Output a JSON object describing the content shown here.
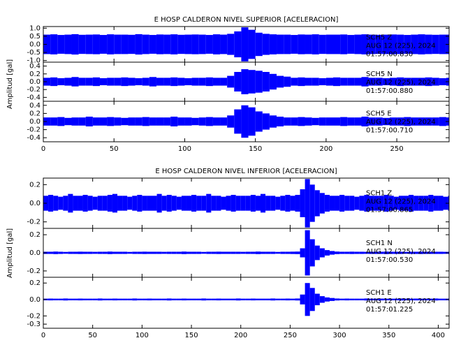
{
  "chart_data": [
    {
      "type": "waveform",
      "title": "E HOSP CALDERON NIVEL SUPERIOR [ACELERACION]",
      "y_label": "Amplitud [gal]",
      "color": "#0000ff",
      "xlim": [
        0,
        287
      ],
      "xticks": [
        0,
        50,
        100,
        150,
        200,
        250
      ],
      "x": [
        0,
        5,
        10,
        15,
        20,
        25,
        30,
        35,
        40,
        45,
        50,
        55,
        60,
        65,
        70,
        75,
        80,
        85,
        90,
        95,
        100,
        105,
        110,
        115,
        120,
        125,
        130,
        135,
        140,
        145,
        150,
        155,
        160,
        165,
        170,
        175,
        180,
        185,
        190,
        195,
        200,
        205,
        210,
        215,
        220,
        225,
        230,
        235,
        240,
        245,
        250,
        255,
        260,
        265,
        270,
        275,
        280,
        285
      ],
      "panels": [
        {
          "station": "SCH5   Z",
          "date": "AUG 12 (225), 2024",
          "time": "01:57:00.830",
          "ylim": [
            -1.1,
            1.1
          ],
          "yticks": [
            {
              "value": 1.0,
              "label": "1.0"
            },
            {
              "value": 0.5,
              "label": "0.5"
            },
            {
              "value": 0.0,
              "label": "0.0"
            },
            {
              "value": -0.5,
              "label": "-0.5"
            },
            {
              "value": -1.0,
              "label": "-1.0"
            }
          ],
          "values": [
            0.6,
            0.62,
            0.58,
            0.6,
            0.63,
            0.59,
            0.6,
            0.61,
            0.58,
            0.62,
            0.6,
            0.6,
            0.59,
            0.63,
            0.6,
            0.58,
            0.61,
            0.6,
            0.62,
            0.59,
            0.6,
            0.61,
            0.6,
            0.58,
            0.62,
            0.6,
            0.65,
            0.8,
            1.05,
            0.9,
            0.72,
            0.65,
            0.62,
            0.6,
            0.6,
            0.58,
            0.61,
            0.6,
            0.62,
            0.59,
            0.6,
            0.6,
            0.61,
            0.58,
            0.6,
            0.62,
            0.6,
            0.59,
            0.6,
            0.61,
            0.6,
            0.58,
            0.6,
            0.62,
            0.6,
            0.59,
            0.6,
            0.6
          ]
        },
        {
          "station": "SCH5   N",
          "date": "AUG 12 (225), 2024",
          "time": "01:57:00.880",
          "ylim": [
            -0.5,
            0.5
          ],
          "yticks": [
            {
              "value": 0.4,
              "label": "0.4"
            },
            {
              "value": 0.2,
              "label": "0.2"
            },
            {
              "value": 0.0,
              "label": "0.0"
            },
            {
              "value": -0.2,
              "label": "-0.2"
            },
            {
              "value": -0.4,
              "label": "-0.4"
            }
          ],
          "values": [
            0.1,
            0.11,
            0.09,
            0.1,
            0.12,
            0.1,
            0.1,
            0.11,
            0.09,
            0.1,
            0.1,
            0.11,
            0.1,
            0.09,
            0.1,
            0.12,
            0.1,
            0.1,
            0.11,
            0.1,
            0.09,
            0.1,
            0.1,
            0.11,
            0.1,
            0.1,
            0.15,
            0.25,
            0.32,
            0.3,
            0.28,
            0.25,
            0.2,
            0.15,
            0.13,
            0.1,
            0.11,
            0.1,
            0.1,
            0.09,
            0.1,
            0.11,
            0.1,
            0.1,
            0.1,
            0.12,
            0.1,
            0.1,
            0.09,
            0.1,
            0.11,
            0.1,
            0.1,
            0.1,
            0.11,
            0.1,
            0.09,
            0.1
          ]
        },
        {
          "station": "SCH5   E",
          "date": "AUG 12 (225), 2024",
          "time": "01:57:00.710",
          "ylim": [
            -0.5,
            0.5
          ],
          "yticks": [
            {
              "value": 0.4,
              "label": "0.4"
            },
            {
              "value": 0.2,
              "label": "0.2"
            },
            {
              "value": 0.0,
              "label": "0.0"
            },
            {
              "value": -0.2,
              "label": "-0.2"
            },
            {
              "value": -0.4,
              "label": "-0.4"
            }
          ],
          "values": [
            0.1,
            0.1,
            0.11,
            0.09,
            0.1,
            0.1,
            0.12,
            0.1,
            0.1,
            0.11,
            0.1,
            0.09,
            0.1,
            0.1,
            0.11,
            0.1,
            0.1,
            0.1,
            0.12,
            0.1,
            0.1,
            0.09,
            0.1,
            0.11,
            0.1,
            0.1,
            0.15,
            0.3,
            0.4,
            0.35,
            0.25,
            0.2,
            0.15,
            0.12,
            0.1,
            0.1,
            0.11,
            0.1,
            0.09,
            0.1,
            0.1,
            0.1,
            0.11,
            0.1,
            0.1,
            0.12,
            0.1,
            0.1,
            0.09,
            0.1,
            0.1,
            0.11,
            0.1,
            0.1,
            0.1,
            0.1,
            0.11,
            0.1
          ]
        }
      ]
    },
    {
      "type": "waveform",
      "title": "E HOSP CALDERON NIVEL INFERIOR [ACELERACION]",
      "y_label": "Amplitud [gal]",
      "color": "#0000ff",
      "xlim": [
        0,
        411
      ],
      "xticks": [
        0,
        50,
        100,
        150,
        200,
        250,
        300,
        350,
        400
      ],
      "x": [
        0,
        5,
        10,
        15,
        20,
        25,
        30,
        35,
        40,
        45,
        50,
        55,
        60,
        65,
        70,
        75,
        80,
        85,
        90,
        95,
        100,
        105,
        110,
        115,
        120,
        125,
        130,
        135,
        140,
        145,
        150,
        155,
        160,
        165,
        170,
        175,
        180,
        185,
        190,
        195,
        200,
        205,
        210,
        215,
        220,
        225,
        230,
        235,
        240,
        245,
        250,
        255,
        260,
        265,
        270,
        275,
        280,
        285,
        290,
        295,
        300,
        305,
        310,
        315,
        320,
        325,
        330,
        335,
        340,
        345,
        350,
        355,
        360,
        365,
        370,
        375,
        380,
        385,
        390,
        395,
        400,
        405,
        410
      ],
      "panels": [
        {
          "station": "SCH1   Z",
          "date": "AUG 12 (225), 2024",
          "time": "01:57:00.865",
          "ylim": [
            -0.27,
            0.27
          ],
          "yticks": [
            {
              "value": 0.2,
              "label": "0.2"
            },
            {
              "value": 0.0,
              "label": "0.0"
            },
            {
              "value": -0.2,
              "label": "-0.2"
            }
          ],
          "values": [
            0.08,
            0.09,
            0.08,
            0.07,
            0.08,
            0.1,
            0.08,
            0.08,
            0.09,
            0.08,
            0.07,
            0.08,
            0.08,
            0.09,
            0.1,
            0.08,
            0.08,
            0.07,
            0.08,
            0.09,
            0.08,
            0.08,
            0.08,
            0.1,
            0.08,
            0.09,
            0.08,
            0.07,
            0.08,
            0.08,
            0.09,
            0.08,
            0.08,
            0.1,
            0.08,
            0.08,
            0.07,
            0.08,
            0.09,
            0.08,
            0.08,
            0.08,
            0.09,
            0.08,
            0.1,
            0.08,
            0.08,
            0.07,
            0.08,
            0.09,
            0.08,
            0.09,
            0.15,
            0.26,
            0.2,
            0.14,
            0.11,
            0.09,
            0.08,
            0.08,
            0.09,
            0.08,
            0.08,
            0.07,
            0.08,
            0.09,
            0.08,
            0.08,
            0.08,
            0.09,
            0.08,
            0.07,
            0.08,
            0.08,
            0.09,
            0.08,
            0.08,
            0.08,
            0.09,
            0.08,
            0.08,
            0.07,
            0.08
          ]
        },
        {
          "station": "SCH1   N",
          "date": "AUG 12 (225), 2024",
          "time": "01:57:00.530",
          "ylim": [
            -0.27,
            0.27
          ],
          "yticks": [
            {
              "value": 0.2,
              "label": "0.2"
            },
            {
              "value": 0.0,
              "label": "0.0"
            },
            {
              "value": -0.2,
              "label": "-0.2"
            }
          ],
          "values": [
            0.012,
            0.012,
            0.014,
            0.012,
            0.01,
            0.012,
            0.012,
            0.013,
            0.012,
            0.012,
            0.011,
            0.012,
            0.012,
            0.014,
            0.012,
            0.012,
            0.012,
            0.01,
            0.012,
            0.012,
            0.013,
            0.012,
            0.012,
            0.012,
            0.011,
            0.012,
            0.012,
            0.012,
            0.014,
            0.012,
            0.012,
            0.012,
            0.01,
            0.012,
            0.012,
            0.013,
            0.012,
            0.012,
            0.012,
            0.012,
            0.011,
            0.012,
            0.012,
            0.014,
            0.012,
            0.012,
            0.012,
            0.01,
            0.012,
            0.012,
            0.013,
            0.014,
            0.05,
            0.25,
            0.15,
            0.08,
            0.05,
            0.03,
            0.02,
            0.014,
            0.012,
            0.012,
            0.013,
            0.012,
            0.012,
            0.011,
            0.012,
            0.012,
            0.012,
            0.014,
            0.012,
            0.012,
            0.012,
            0.01,
            0.012,
            0.012,
            0.013,
            0.012,
            0.012,
            0.012,
            0.012,
            0.011,
            0.012
          ]
        },
        {
          "station": "SCH1   E",
          "date": "AUG 12 (225), 2024",
          "time": "01:57:01.225",
          "ylim": [
            -0.35,
            0.27
          ],
          "yticks": [
            {
              "value": 0.2,
              "label": "0.2"
            },
            {
              "value": 0.0,
              "label": "0.0"
            },
            {
              "value": -0.2,
              "label": "-0.2"
            },
            {
              "value": -0.3,
              "label": "-0.3"
            }
          ],
          "values": [
            0.01,
            0.011,
            0.01,
            0.01,
            0.012,
            0.01,
            0.01,
            0.011,
            0.01,
            0.01,
            0.01,
            0.012,
            0.01,
            0.01,
            0.011,
            0.01,
            0.01,
            0.01,
            0.012,
            0.01,
            0.01,
            0.011,
            0.01,
            0.01,
            0.01,
            0.012,
            0.01,
            0.01,
            0.011,
            0.01,
            0.01,
            0.01,
            0.012,
            0.01,
            0.01,
            0.011,
            0.01,
            0.01,
            0.01,
            0.012,
            0.01,
            0.01,
            0.011,
            0.01,
            0.01,
            0.01,
            0.012,
            0.01,
            0.01,
            0.011,
            0.01,
            0.012,
            0.06,
            0.2,
            0.14,
            0.07,
            0.04,
            0.025,
            0.018,
            0.012,
            0.01,
            0.011,
            0.01,
            0.01,
            0.01,
            0.012,
            0.01,
            0.01,
            0.011,
            0.01,
            0.01,
            0.01,
            0.012,
            0.01,
            0.01,
            0.011,
            0.01,
            0.01,
            0.01,
            0.012,
            0.01,
            0.01,
            0.011
          ]
        }
      ]
    }
  ]
}
